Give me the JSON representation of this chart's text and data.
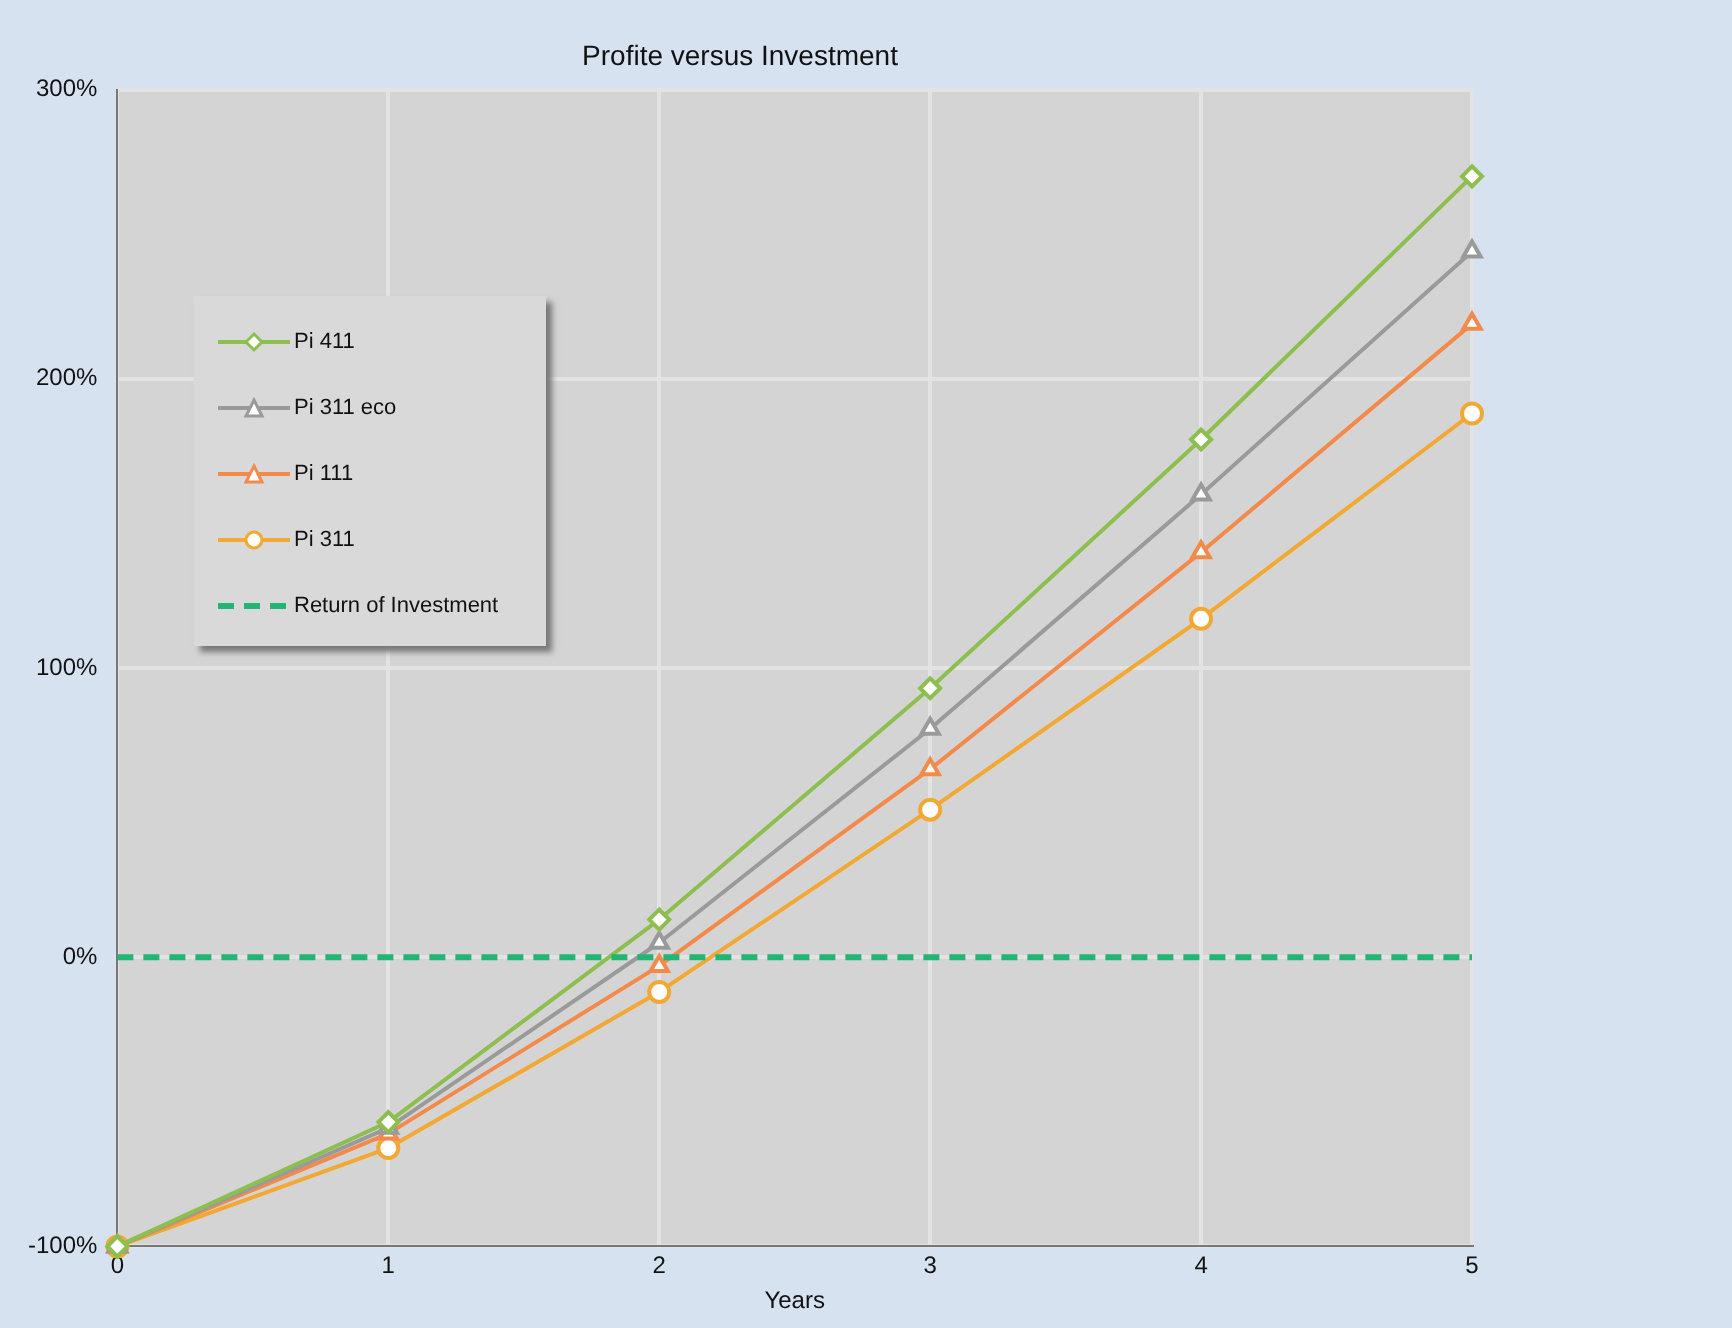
{
  "chart_data": {
    "type": "line",
    "title": "Profite versus Investment",
    "xlabel": "Years",
    "x": [
      0,
      1,
      2,
      3,
      4,
      5
    ],
    "series": [
      {
        "name": "Pi 411",
        "color": "#8dbf4f",
        "marker": "diamond",
        "values": [
          -100,
          -57,
          13,
          93,
          179,
          270
        ]
      },
      {
        "name": "Pi 311 eco",
        "color": "#9a9a9a",
        "marker": "triangle",
        "values": [
          -100,
          -59,
          5,
          79,
          160,
          244
        ]
      },
      {
        "name": "Pi 111",
        "color": "#f48a4a",
        "marker": "triangle",
        "values": [
          -100,
          -61,
          -3,
          65,
          140,
          219
        ]
      },
      {
        "name": "Pi 311",
        "color": "#f2a832",
        "marker": "circle",
        "values": [
          -100,
          -66,
          -12,
          51,
          117,
          188
        ]
      }
    ],
    "ref_lines": [
      {
        "axis": "y",
        "value": 0,
        "label": "Return of Investment",
        "color": "#22b573",
        "line_style": "dashed"
      }
    ],
    "xlim": [
      0,
      5
    ],
    "xticks": [
      0,
      1,
      2,
      3,
      4,
      5
    ],
    "ylim": [
      -100,
      300
    ],
    "yticks": [
      {
        "value": -100,
        "label": "-100%"
      },
      {
        "value": 0,
        "label": "0%"
      },
      {
        "value": 100,
        "label": "100%"
      },
      {
        "value": 200,
        "label": "200%"
      },
      {
        "value": 300,
        "label": "300%"
      }
    ],
    "grid": true,
    "legend": "left",
    "line_style": "solid"
  }
}
